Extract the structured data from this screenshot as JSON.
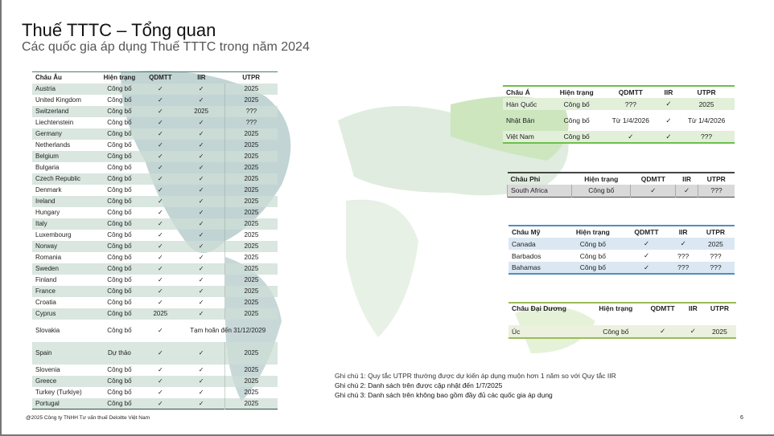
{
  "header": {
    "title": "Thuế TTTC – Tổng quan",
    "subtitle": "Các quốc gia áp dụng Thuế TTTC trong năm 2024"
  },
  "columns": [
    "Hiện trạng",
    "QDMTT",
    "IIR",
    "UTPR"
  ],
  "europe": {
    "region": "Châu Âu",
    "rows": [
      [
        "Austria",
        "Công bố",
        "✓",
        "✓",
        "2025"
      ],
      [
        "United Kingdom",
        "Công bố",
        "✓",
        "✓",
        "2025"
      ],
      [
        "Switzerland",
        "Công bố",
        "✓",
        "2025",
        "???"
      ],
      [
        "Liechtenstein",
        "Công bố",
        "✓",
        "✓",
        "???"
      ],
      [
        "Germany",
        "Công bố",
        "✓",
        "✓",
        "2025"
      ],
      [
        "Netherlands",
        "Công bố",
        "✓",
        "✓",
        "2025"
      ],
      [
        "Belgium",
        "Công bố",
        "✓",
        "✓",
        "2025"
      ],
      [
        "Bulgaria",
        "Công bố",
        "✓",
        "✓",
        "2025"
      ],
      [
        "Czech Republic",
        "Công bố",
        "✓",
        "✓",
        "2025"
      ],
      [
        "Denmark",
        "Công bố",
        "✓",
        "✓",
        "2025"
      ],
      [
        "Ireland",
        "Công bố",
        "✓",
        "✓",
        "2025"
      ],
      [
        "Hungary",
        "Công bố",
        "✓",
        "✓",
        "2025"
      ],
      [
        "Italy",
        "Công bố",
        "✓",
        "✓",
        "2025"
      ],
      [
        "Luxembourg",
        "Công bố",
        "✓",
        "✓",
        "2025"
      ],
      [
        "Norway",
        "Công bố",
        "✓",
        "✓",
        "2025"
      ],
      [
        "Romania",
        "Công bố",
        "✓",
        "✓",
        "2025"
      ],
      [
        "Sweden",
        "Công bố",
        "✓",
        "✓",
        "2025"
      ],
      [
        "Finland",
        "Công bố",
        "✓",
        "✓",
        "2025"
      ],
      [
        "France",
        "Công bố",
        "✓",
        "✓",
        "2025"
      ],
      [
        "Croatia",
        "Công bố",
        "✓",
        "✓",
        "2025"
      ],
      [
        "Cyprus",
        "Công bố",
        "2025",
        "✓",
        "2025"
      ],
      [
        "Slovakia",
        "Công bố",
        "✓",
        "Tạm hoãn đến 31/12/2029"
      ],
      [
        "Spain",
        "Dự thảo",
        "✓",
        "✓",
        "2025"
      ],
      [
        "Slovenia",
        "Công bố",
        "✓",
        "✓",
        "2025"
      ],
      [
        "Greece",
        "Công bố",
        "✓",
        "✓",
        "2025"
      ],
      [
        "Turkey (Turkiye)",
        "Công bố",
        "✓",
        "✓",
        "2025"
      ],
      [
        "Portugal",
        "Công bố",
        "✓",
        "✓",
        "2025"
      ]
    ]
  },
  "asia": {
    "region": "Châu Á",
    "rows": [
      [
        "Hàn Quốc",
        "Công bố",
        "???",
        "✓",
        "2025"
      ],
      [
        "Nhật Bản",
        "Công bố",
        "Từ 1/4/2026",
        "✓",
        "Từ 1/4/2026"
      ],
      [
        "Việt Nam",
        "Công bố",
        "✓",
        "✓",
        "???"
      ]
    ]
  },
  "africa": {
    "region": "Châu Phi",
    "rows": [
      [
        "South Africa",
        "Công bố",
        "✓",
        "✓",
        "???"
      ]
    ]
  },
  "america": {
    "region": "Châu Mỹ",
    "rows": [
      [
        "Canada",
        "Công bố",
        "✓",
        "✓",
        "2025"
      ],
      [
        "Barbados",
        "Công bố",
        "✓",
        "???",
        "???"
      ],
      [
        "Bahamas",
        "Công bố",
        "✓",
        "???",
        "???"
      ]
    ]
  },
  "oceania": {
    "region": "Châu Đại Dương",
    "rows": [
      [
        "Úc",
        "Công bố",
        "✓",
        "✓",
        "2025"
      ]
    ]
  },
  "notes": [
    "Ghi chú 1: Quy tắc UTPR thường được dự kiến áp dụng muộn hơn 1 năm so với Quy tắc IIR",
    "Ghi chú 2: Danh sách trên được cập nhật đến 1/7/2025",
    "Ghi chú 3: Danh sách trên không bao gồm đầy đủ các quốc gia áp dụng"
  ],
  "footer": {
    "copyright": "@2025 Công ty TNHH Tư vấn thuế Deloitte Việt Nam",
    "page": "6"
  }
}
